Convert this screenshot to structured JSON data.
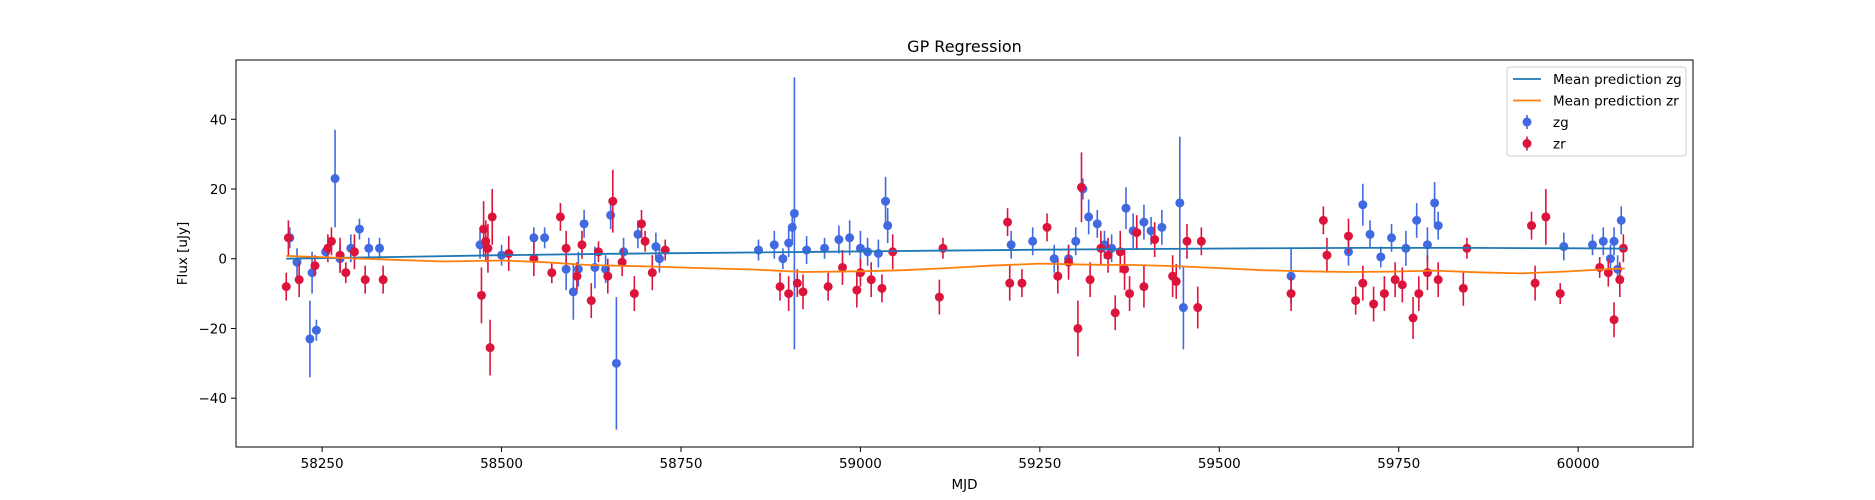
{
  "chart_data": {
    "type": "scatter",
    "title": "GP Regression",
    "xlabel": "MJD",
    "ylabel": "Flux [uJy]",
    "xlim": [
      58130,
      60160
    ],
    "ylim": [
      -54,
      57
    ],
    "x_ticks": [
      58250,
      58500,
      58750,
      59000,
      59250,
      59500,
      59750,
      60000
    ],
    "y_ticks": [
      -40,
      -20,
      0,
      20,
      40
    ],
    "grid": false,
    "legend_position": "top-right",
    "series": [
      {
        "name": "Mean prediction zg",
        "kind": "line",
        "color": "#1f77b4",
        "x": [
          58200,
          58350,
          58500,
          58650,
          58800,
          58950,
          59100,
          59250,
          59400,
          59550,
          59700,
          59850,
          60000,
          60065
        ],
        "y": [
          0.0,
          0.5,
          1.0,
          1.4,
          1.7,
          2.0,
          2.3,
          2.6,
          2.8,
          3.0,
          3.1,
          3.1,
          3.0,
          2.9
        ]
      },
      {
        "name": "Mean prediction zr",
        "kind": "line",
        "color": "#ff7f0e",
        "x": [
          58200,
          58280,
          58350,
          58420,
          58500,
          58560,
          58620,
          58700,
          58780,
          58850,
          58920,
          59000,
          59060,
          59120,
          59180,
          59250,
          59320,
          59380,
          59440,
          59500,
          59560,
          59620,
          59680,
          59740,
          59800,
          59860,
          59920,
          59980,
          60040,
          60065
        ],
        "y": [
          0.8,
          0.2,
          -0.3,
          -0.8,
          -0.5,
          -1.0,
          -1.8,
          -2.2,
          -2.7,
          -3.1,
          -3.8,
          -3.6,
          -3.3,
          -2.7,
          -2.0,
          -1.4,
          -1.7,
          -1.8,
          -2.1,
          -2.7,
          -3.3,
          -3.6,
          -3.8,
          -3.7,
          -3.4,
          -3.9,
          -4.2,
          -3.7,
          -3.0,
          -2.8
        ]
      },
      {
        "name": "zg",
        "kind": "errorbar",
        "color": "#4169e1",
        "x": [
          58205,
          58215,
          58233,
          58236,
          58242,
          58255,
          58268,
          58275,
          58290,
          58302,
          58315,
          58330,
          58470,
          58500,
          58545,
          58560,
          58590,
          58600,
          58607,
          58615,
          58630,
          58645,
          58652,
          58660,
          58670,
          58690,
          58715,
          58720,
          58858,
          58880,
          58892,
          58900,
          58905,
          58908,
          58925,
          58950,
          58970,
          58985,
          59000,
          59010,
          59025,
          59035,
          59038,
          59210,
          59240,
          59270,
          59290,
          59300,
          59310,
          59318,
          59330,
          59340,
          59350,
          59370,
          59380,
          59395,
          59405,
          59420,
          59445,
          59450,
          59600,
          59680,
          59700,
          59710,
          59725,
          59740,
          59760,
          59775,
          59790,
          59800,
          59805,
          59980,
          60020,
          60035,
          60045,
          60050,
          60055,
          60060
        ],
        "y": [
          6,
          -1,
          -23,
          -4,
          -20.5,
          2,
          23,
          0,
          3,
          8.5,
          3,
          3,
          4,
          1,
          6,
          6,
          -3,
          -9.5,
          -3,
          10,
          -2.5,
          -3,
          12.5,
          -30,
          2,
          7,
          3.5,
          0,
          2.5,
          4,
          0,
          4.5,
          9,
          13,
          2.5,
          3,
          5.5,
          6,
          3,
          2,
          1.5,
          16.5,
          9.5,
          4,
          5,
          0,
          0,
          5,
          20,
          12,
          10,
          4,
          3,
          14.5,
          8,
          10.5,
          8,
          9,
          16,
          -14,
          -5,
          2,
          15.5,
          7,
          0.5,
          6,
          3,
          11,
          4,
          16,
          9.5,
          3.5,
          4,
          5,
          0,
          5,
          -3,
          11
        ],
        "err": [
          3,
          4,
          11,
          6,
          3,
          2,
          14,
          4,
          4,
          3,
          3,
          3,
          4,
          3,
          3,
          3,
          6,
          8,
          5,
          4,
          6,
          4,
          4,
          19,
          4,
          4,
          4,
          4,
          3,
          4,
          3,
          4,
          5,
          39,
          4,
          3,
          4,
          5,
          5,
          4,
          4,
          7,
          5,
          4,
          4,
          4,
          4,
          4,
          3,
          5,
          4,
          4,
          4,
          6,
          5,
          5,
          4,
          5,
          19,
          12,
          8,
          4,
          6,
          4,
          3,
          4,
          5,
          5,
          5,
          6,
          4,
          4,
          3,
          4,
          4,
          4,
          4,
          4
        ]
      },
      {
        "name": "zr",
        "kind": "errorbar",
        "color": "#dc143c",
        "x": [
          58200,
          58203,
          58218,
          58240,
          58258,
          58263,
          58275,
          58283,
          58295,
          58310,
          58335,
          58472,
          58475,
          58478,
          58481,
          58484,
          58487,
          58510,
          58545,
          58570,
          58582,
          58590,
          58605,
          58612,
          58625,
          58635,
          58648,
          58655,
          58668,
          58685,
          58695,
          58700,
          58710,
          58728,
          58888,
          58900,
          58912,
          58920,
          58955,
          58975,
          58995,
          59000,
          59015,
          59030,
          59045,
          59110,
          59115,
          59205,
          59208,
          59225,
          59260,
          59275,
          59290,
          59303,
          59308,
          59320,
          59335,
          59345,
          59355,
          59362,
          59368,
          59375,
          59385,
          59395,
          59410,
          59435,
          59440,
          59455,
          59470,
          59475,
          59600,
          59645,
          59650,
          59680,
          59690,
          59700,
          59715,
          59730,
          59745,
          59755,
          59770,
          59778,
          59790,
          59805,
          59840,
          59845,
          59935,
          59940,
          59955,
          59975,
          60030,
          60042,
          60050,
          60058,
          60063
        ],
        "y": [
          -8,
          6,
          -6,
          -2,
          3,
          5,
          1,
          -4,
          2,
          -6,
          -6,
          -10.5,
          8.5,
          5,
          3,
          -25.5,
          12,
          1.5,
          0,
          -4,
          12,
          3,
          -5,
          4,
          -12,
          2,
          -5,
          16.5,
          -1,
          -10,
          10,
          5,
          -4,
          2.5,
          -8,
          -10,
          -7,
          -9.5,
          -8,
          -2.5,
          -9,
          -4,
          -6,
          -8.5,
          2,
          -11,
          3,
          10.5,
          -7,
          -7,
          9,
          -5,
          -1,
          -20,
          20.5,
          -6,
          3,
          1,
          -15.5,
          2,
          -3,
          -10,
          7.5,
          -8,
          5.5,
          -5,
          -6.5,
          5,
          -14,
          5,
          -10,
          11,
          1,
          6.5,
          -12,
          -7,
          -13,
          -10,
          -6,
          -7.5,
          -17,
          -10,
          -4,
          -6,
          -8.5,
          3,
          9.5,
          -7,
          12,
          -10,
          -2.5,
          -4,
          -17.5,
          -6,
          3
        ],
        "err": [
          4,
          5,
          5,
          3,
          4,
          4,
          5,
          3,
          5,
          4,
          4,
          8,
          8,
          6,
          7,
          8,
          8,
          5,
          5,
          3,
          4,
          5,
          4,
          4,
          5,
          3,
          5,
          9,
          4,
          5,
          4,
          3,
          5,
          3,
          4,
          5,
          4,
          5,
          4,
          5,
          5,
          4,
          5,
          4,
          5,
          5,
          3,
          4,
          5,
          4,
          4,
          5,
          5,
          8,
          10,
          5,
          5,
          5,
          5,
          6,
          6,
          5,
          5,
          6,
          5,
          6,
          5,
          5,
          6,
          4,
          5,
          4,
          5,
          5,
          4,
          5,
          5,
          5,
          5,
          5,
          6,
          5,
          5,
          5,
          5,
          3,
          4,
          5,
          8,
          3,
          3,
          4,
          5,
          5,
          4
        ]
      }
    ]
  }
}
